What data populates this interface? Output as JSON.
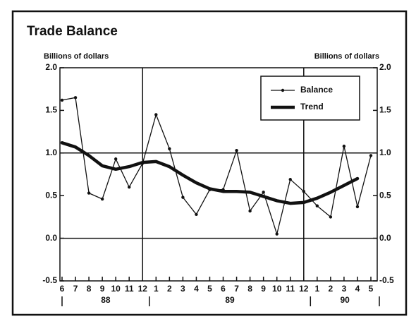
{
  "chart_data": {
    "type": "line",
    "title": "Trade Balance",
    "y_label": "Billions of dollars",
    "y2_label": "Billions of dollars",
    "categories": [
      "6",
      "7",
      "8",
      "9",
      "10",
      "11",
      "12",
      "1",
      "2",
      "3",
      "4",
      "5",
      "6",
      "7",
      "8",
      "9",
      "10",
      "11",
      "12",
      "1",
      "2",
      "3",
      "4",
      "5"
    ],
    "years": [
      "88",
      "89",
      "90"
    ],
    "series": [
      {
        "name": "Balance",
        "color": "#111111",
        "style": "thin-dots",
        "values": [
          1.62,
          1.65,
          0.53,
          0.46,
          0.93,
          0.6,
          0.88,
          1.45,
          1.05,
          0.48,
          0.28,
          0.57,
          0.57,
          1.03,
          0.32,
          0.54,
          0.05,
          0.69,
          0.55,
          0.38,
          0.25,
          1.08,
          0.37,
          0.97
        ]
      },
      {
        "name": "Trend",
        "color": "#111111",
        "style": "thick",
        "values": [
          1.12,
          1.07,
          0.97,
          0.85,
          0.81,
          0.84,
          0.89,
          0.9,
          0.84,
          0.74,
          0.65,
          0.58,
          0.55,
          0.55,
          0.54,
          0.49,
          0.44,
          0.41,
          0.42,
          0.47,
          0.54,
          0.62,
          0.7,
          null
        ]
      }
    ],
    "ylim": [
      -0.5,
      2.0
    ],
    "yticks": [
      {
        "value": -0.5,
        "label": "-0.5"
      },
      {
        "value": 0,
        "label": "0.0"
      },
      {
        "value": 0.5,
        "label": "0.5"
      },
      {
        "value": 1,
        "label": "1.0"
      },
      {
        "value": 1.5,
        "label": "1.5"
      },
      {
        "value": 2,
        "label": "2.0"
      }
    ],
    "y2lim": [
      -0.5,
      2.0
    ],
    "y2ticks": [
      {
        "value": -0.5,
        "label": "-0.5"
      },
      {
        "value": 0,
        "label": "0.0"
      },
      {
        "value": 0.5,
        "label": "0.5"
      },
      {
        "value": 1,
        "label": "1.0"
      },
      {
        "value": 1.5,
        "label": "1.5"
      },
      {
        "value": 2,
        "label": "2.0"
      }
    ],
    "hlines": [
      1,
      0
    ],
    "legend": "upper right"
  }
}
